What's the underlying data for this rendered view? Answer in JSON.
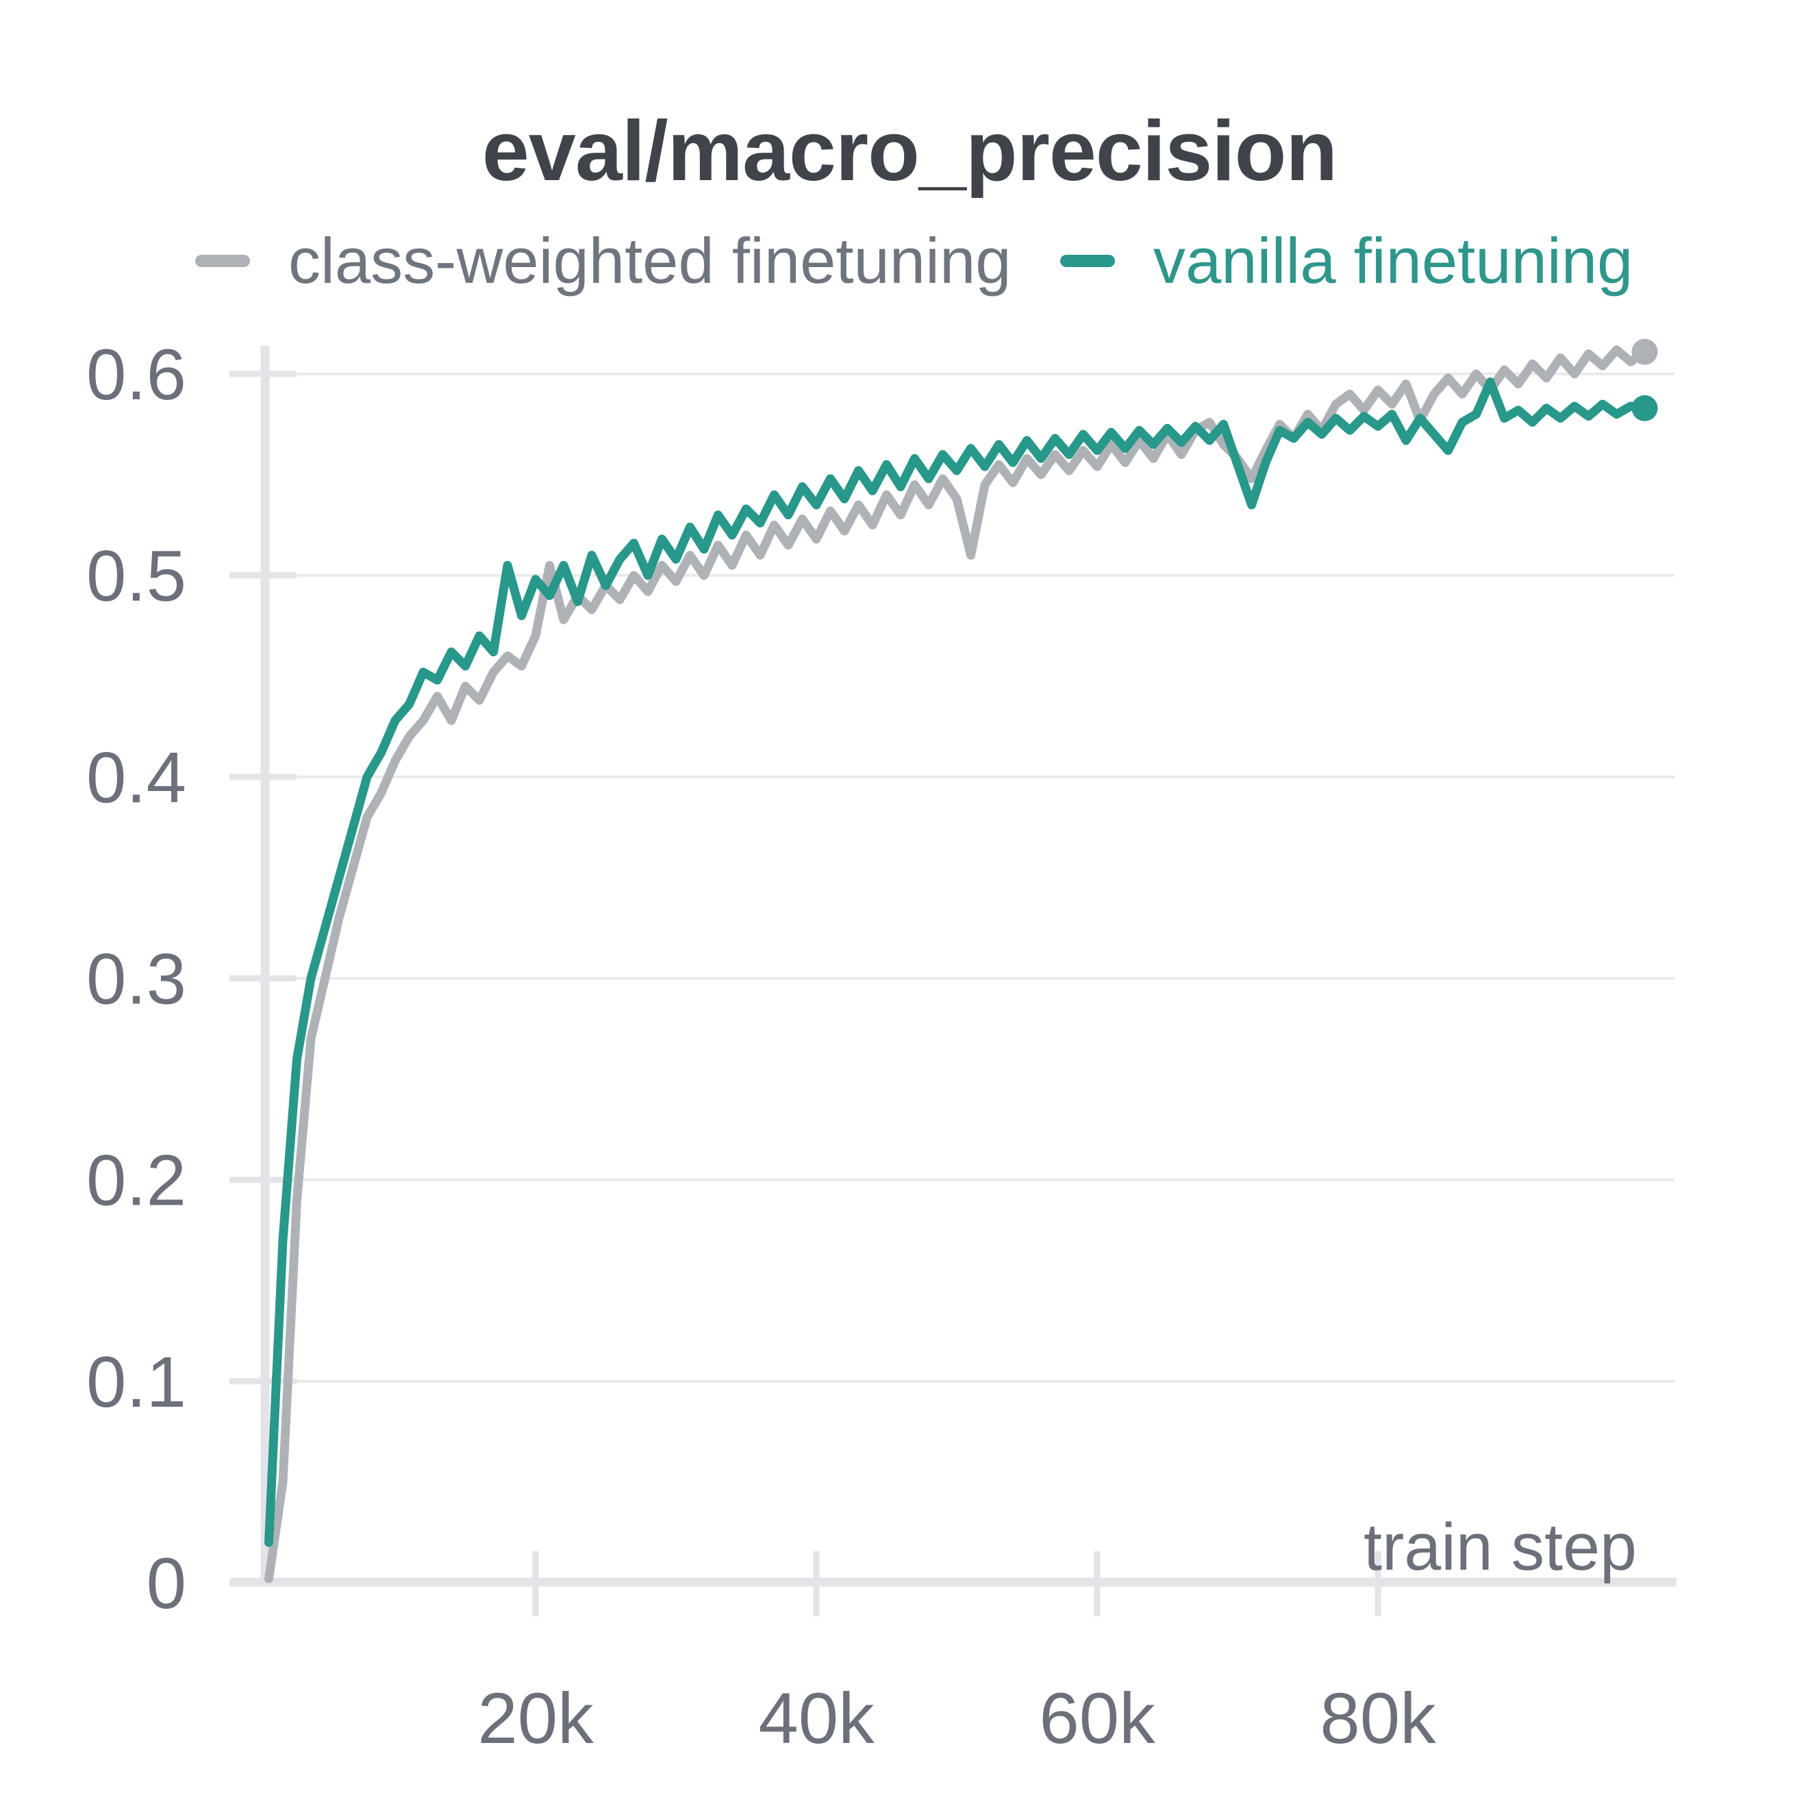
{
  "title": "eval/macro_precision",
  "legend": [
    {
      "label": "class-weighted finetuning",
      "color": "#aeb2b6",
      "text_color": "#6f757e"
    },
    {
      "label": "vanilla finetuning",
      "color": "#27988a",
      "text_color": "#2e968a"
    }
  ],
  "colors": {
    "title_text": "#3f444b",
    "tick_text": "#6b707a",
    "axis_label_text": "#6b707a",
    "grid": "#eaeaed",
    "axis": "#e4e4e8",
    "background": "#ffffff",
    "gray_series": "#aeb2b6",
    "teal_series": "#27988a"
  },
  "chart_data": {
    "type": "line",
    "title": "eval/macro_precision",
    "xlabel": "train step",
    "ylabel": "",
    "xlim": [
      0,
      100000
    ],
    "ylim": [
      0,
      0.62
    ],
    "grid": true,
    "legend_position": "top-left",
    "xticks": [
      {
        "value": 20000,
        "label": "20k"
      },
      {
        "value": 40000,
        "label": "40k"
      },
      {
        "value": 60000,
        "label": "60k"
      },
      {
        "value": 80000,
        "label": "80k"
      }
    ],
    "yticks": [
      {
        "value": 0,
        "label": "0"
      },
      {
        "value": 0.1,
        "label": "0.1"
      },
      {
        "value": 0.2,
        "label": "0.2"
      },
      {
        "value": 0.3,
        "label": "0.3"
      },
      {
        "value": 0.4,
        "label": "0.4"
      },
      {
        "value": 0.5,
        "label": "0.5"
      },
      {
        "value": 0.6,
        "label": "0.6"
      }
    ],
    "series": [
      {
        "name": "class-weighted finetuning",
        "color": "#aeb2b6",
        "end_marker": true,
        "final_value": 0.611,
        "x": [
          1000,
          2000,
          3000,
          4000,
          5000,
          6000,
          7000,
          8000,
          9000,
          10000,
          11000,
          12000,
          13000,
          14000,
          15000,
          16000,
          17000,
          18000,
          19000,
          20000,
          21000,
          22000,
          23000,
          24000,
          25000,
          26000,
          27000,
          28000,
          29000,
          30000,
          31000,
          32000,
          33000,
          34000,
          35000,
          36000,
          37000,
          38000,
          39000,
          40000,
          41000,
          42000,
          43000,
          44000,
          45000,
          46000,
          47000,
          48000,
          49000,
          50000,
          51000,
          52000,
          53000,
          54000,
          55000,
          56000,
          57000,
          58000,
          59000,
          60000,
          61000,
          62000,
          63000,
          64000,
          65000,
          66000,
          67000,
          68000,
          69000,
          70000,
          71000,
          72000,
          73000,
          74000,
          75000,
          76000,
          77000,
          78000,
          79000,
          80000,
          81000,
          82000,
          83000,
          84000,
          85000,
          86000,
          87000,
          88000,
          89000,
          90000,
          91000,
          92000,
          93000,
          94000,
          95000,
          96000,
          97000,
          98000,
          99000
        ],
        "y": [
          0.002,
          0.05,
          0.19,
          0.27,
          0.3,
          0.33,
          0.355,
          0.38,
          0.392,
          0.408,
          0.42,
          0.428,
          0.44,
          0.428,
          0.445,
          0.438,
          0.452,
          0.46,
          0.455,
          0.47,
          0.505,
          0.478,
          0.49,
          0.483,
          0.495,
          0.488,
          0.5,
          0.492,
          0.505,
          0.497,
          0.51,
          0.5,
          0.515,
          0.505,
          0.52,
          0.51,
          0.525,
          0.515,
          0.528,
          0.518,
          0.532,
          0.522,
          0.535,
          0.525,
          0.54,
          0.53,
          0.545,
          0.535,
          0.548,
          0.538,
          0.51,
          0.545,
          0.555,
          0.546,
          0.558,
          0.55,
          0.56,
          0.552,
          0.562,
          0.554,
          0.565,
          0.556,
          0.567,
          0.558,
          0.57,
          0.56,
          0.572,
          0.576,
          0.565,
          0.558,
          0.548,
          0.562,
          0.575,
          0.568,
          0.58,
          0.572,
          0.585,
          0.59,
          0.582,
          0.592,
          0.585,
          0.595,
          0.577,
          0.59,
          0.598,
          0.59,
          0.6,
          0.592,
          0.602,
          0.595,
          0.605,
          0.598,
          0.608,
          0.6,
          0.61,
          0.604,
          0.612,
          0.606,
          0.611
        ]
      },
      {
        "name": "vanilla finetuning",
        "color": "#27988a",
        "end_marker": true,
        "final_value": 0.583,
        "x": [
          1000,
          2000,
          3000,
          4000,
          5000,
          6000,
          7000,
          8000,
          9000,
          10000,
          11000,
          12000,
          13000,
          14000,
          15000,
          16000,
          17000,
          18000,
          19000,
          20000,
          21000,
          22000,
          23000,
          24000,
          25000,
          26000,
          27000,
          28000,
          29000,
          30000,
          31000,
          32000,
          33000,
          34000,
          35000,
          36000,
          37000,
          38000,
          39000,
          40000,
          41000,
          42000,
          43000,
          44000,
          45000,
          46000,
          47000,
          48000,
          49000,
          50000,
          51000,
          52000,
          53000,
          54000,
          55000,
          56000,
          57000,
          58000,
          59000,
          60000,
          61000,
          62000,
          63000,
          64000,
          65000,
          66000,
          67000,
          68000,
          69000,
          70000,
          71000,
          72000,
          73000,
          74000,
          75000,
          76000,
          77000,
          78000,
          79000,
          80000,
          81000,
          82000,
          83000,
          84000,
          85000,
          86000,
          87000,
          88000,
          89000,
          90000,
          91000,
          92000,
          93000,
          94000,
          95000,
          96000,
          97000,
          98000,
          99000
        ],
        "y": [
          0.02,
          0.17,
          0.26,
          0.3,
          0.325,
          0.35,
          0.375,
          0.4,
          0.412,
          0.428,
          0.436,
          0.452,
          0.448,
          0.462,
          0.455,
          0.47,
          0.462,
          0.505,
          0.48,
          0.498,
          0.49,
          0.505,
          0.487,
          0.51,
          0.495,
          0.508,
          0.516,
          0.5,
          0.518,
          0.508,
          0.524,
          0.513,
          0.53,
          0.52,
          0.533,
          0.526,
          0.54,
          0.53,
          0.544,
          0.535,
          0.548,
          0.538,
          0.552,
          0.542,
          0.555,
          0.544,
          0.558,
          0.548,
          0.56,
          0.552,
          0.563,
          0.554,
          0.565,
          0.556,
          0.567,
          0.558,
          0.568,
          0.56,
          0.57,
          0.562,
          0.571,
          0.563,
          0.572,
          0.565,
          0.573,
          0.566,
          0.574,
          0.567,
          0.575,
          0.555,
          0.535,
          0.556,
          0.572,
          0.568,
          0.576,
          0.57,
          0.578,
          0.572,
          0.579,
          0.574,
          0.58,
          0.567,
          0.578,
          0.57,
          0.562,
          0.576,
          0.58,
          0.596,
          0.578,
          0.582,
          0.576,
          0.583,
          0.578,
          0.584,
          0.579,
          0.585,
          0.58,
          0.584,
          0.583
        ]
      }
    ]
  }
}
